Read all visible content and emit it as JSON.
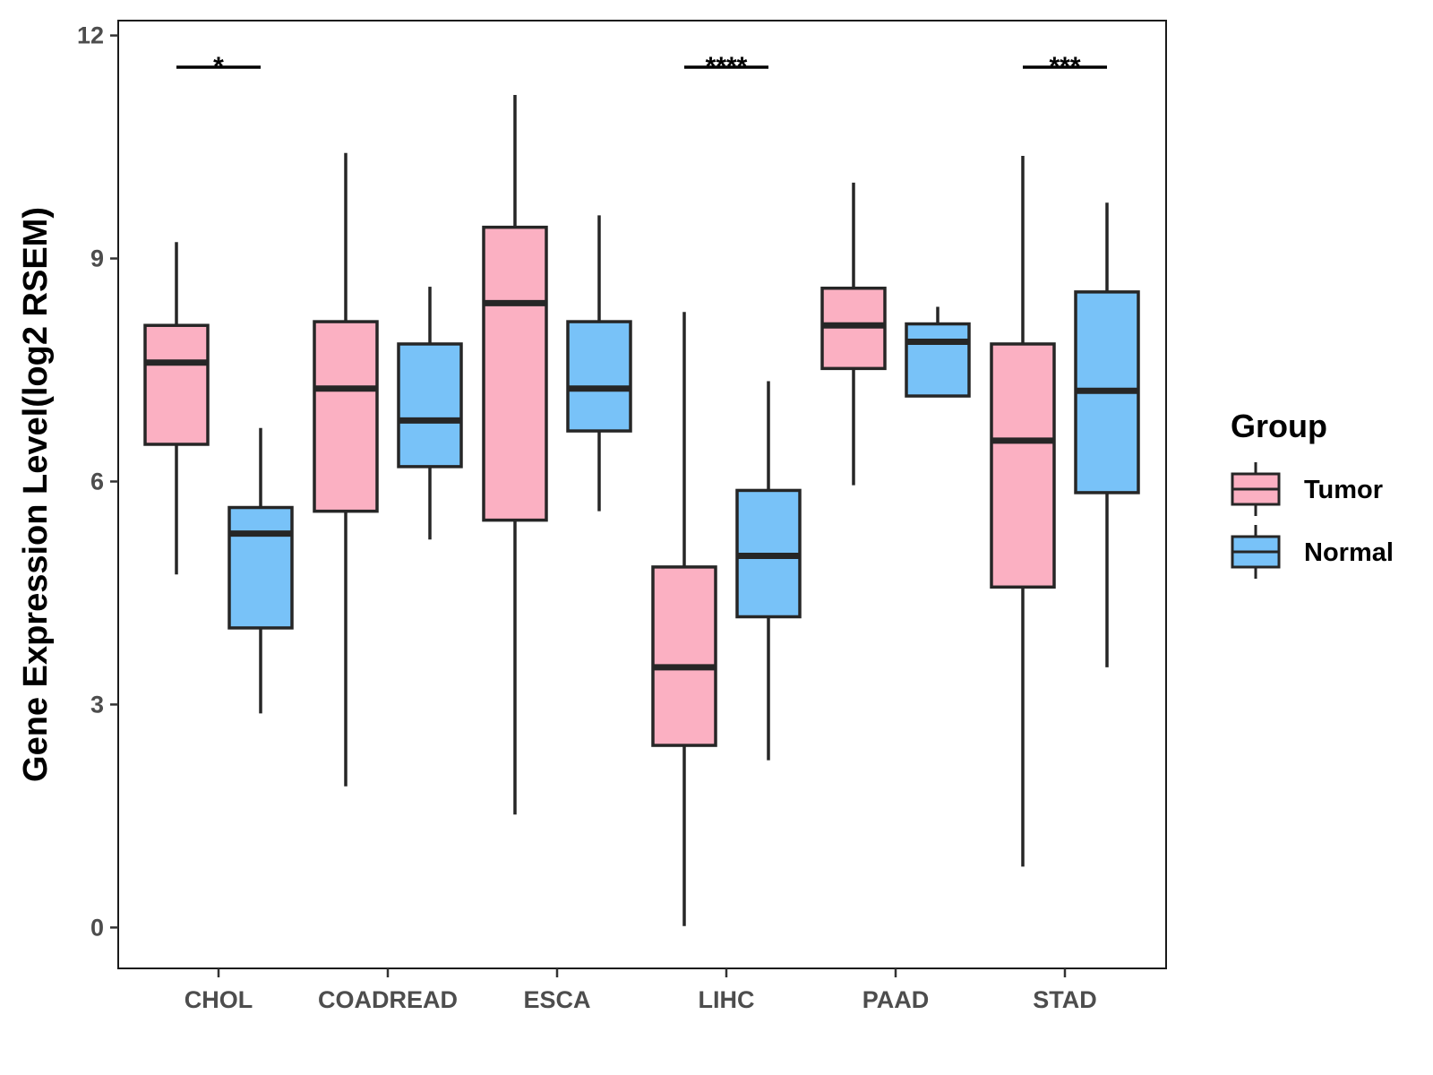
{
  "chart_data": {
    "type": "boxplot",
    "title": "",
    "xlabel": "",
    "ylabel": "Gene Expression Level(log2 RSEM)",
    "ylim": [
      -0.55,
      12.2
    ],
    "yticks": [
      0,
      3,
      6,
      9,
      12
    ],
    "yticklabels": [
      "0",
      "3",
      "6",
      "9",
      "12"
    ],
    "grid": false,
    "categories": [
      "CHOL",
      "COADREAD",
      "ESCA",
      "LIHC",
      "PAAD",
      "STAD"
    ],
    "series": [
      {
        "name": "Tumor",
        "color": "#FBB0C2",
        "boxes": [
          {
            "min": 4.75,
            "q1": 6.5,
            "median": 7.6,
            "q3": 8.1,
            "max": 9.22
          },
          {
            "min": 1.9,
            "q1": 5.6,
            "median": 7.25,
            "q3": 8.15,
            "max": 10.42
          },
          {
            "min": 1.52,
            "q1": 5.48,
            "median": 8.4,
            "q3": 9.42,
            "max": 11.2
          },
          {
            "min": 0.02,
            "q1": 2.45,
            "median": 3.5,
            "q3": 4.85,
            "max": 8.28
          },
          {
            "min": 5.95,
            "q1": 7.52,
            "median": 8.1,
            "q3": 8.6,
            "max": 10.02
          },
          {
            "min": 0.82,
            "q1": 4.58,
            "median": 6.55,
            "q3": 7.85,
            "max": 10.38
          }
        ]
      },
      {
        "name": "Normal",
        "color": "#78C2F8",
        "boxes": [
          {
            "min": 2.88,
            "q1": 4.03,
            "median": 5.3,
            "q3": 5.65,
            "max": 6.72
          },
          {
            "min": 5.22,
            "q1": 6.2,
            "median": 6.82,
            "q3": 7.85,
            "max": 8.62
          },
          {
            "min": 5.6,
            "q1": 6.68,
            "median": 7.25,
            "q3": 8.15,
            "max": 9.58
          },
          {
            "min": 2.25,
            "q1": 4.18,
            "median": 5.0,
            "q3": 5.88,
            "max": 7.35
          },
          {
            "min": 7.15,
            "q1": 7.15,
            "median": 7.88,
            "q3": 8.12,
            "max": 8.35
          },
          {
            "min": 3.5,
            "q1": 5.85,
            "median": 7.22,
            "q3": 8.55,
            "max": 9.75
          }
        ]
      }
    ],
    "significance": [
      {
        "category": "CHOL",
        "label": "*"
      },
      {
        "category": "LIHC",
        "label": "****"
      },
      {
        "category": "STAD",
        "label": "***"
      }
    ],
    "legend": {
      "title": "Group",
      "position": "right",
      "items": [
        "Tumor",
        "Normal"
      ]
    }
  }
}
